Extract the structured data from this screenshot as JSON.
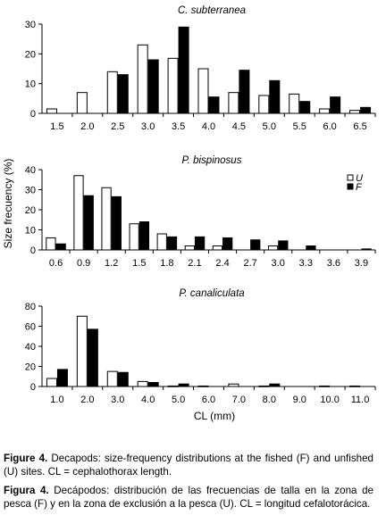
{
  "figure": {
    "y_axis_title": "Size frecuency (%)",
    "x_axis_title": "CL (mm)",
    "legend": {
      "unfished_label": "U",
      "fished_label": "F"
    }
  },
  "chart_data": [
    {
      "type": "bar",
      "title": "C. subterranea",
      "categories": [
        "1.5",
        "2.0",
        "2.5",
        "3.0",
        "3.5",
        "4.0",
        "4.5",
        "5.0",
        "5.5",
        "6.0",
        "6.5"
      ],
      "series": [
        {
          "name": "U",
          "color": "#ffffff",
          "values": [
            1.5,
            7,
            14,
            23,
            18.5,
            15,
            7,
            6,
            6.5,
            1.5,
            1
          ]
        },
        {
          "name": "F",
          "color": "#000000",
          "values": [
            0,
            0,
            13,
            18,
            29,
            5.5,
            14.5,
            11,
            4,
            5.5,
            2
          ]
        }
      ],
      "ylim": [
        0,
        30
      ],
      "yticks": [
        0,
        10,
        20,
        30
      ]
    },
    {
      "type": "bar",
      "title": "P. bispinosus",
      "categories": [
        "0.6",
        "0.9",
        "1.2",
        "1.5",
        "1.8",
        "2.1",
        "2.4",
        "2.7",
        "3.0",
        "3.3",
        "3.6",
        "3.9"
      ],
      "series": [
        {
          "name": "U",
          "color": "#ffffff",
          "values": [
            6,
            37,
            31,
            13,
            8,
            2,
            2,
            0,
            2,
            0,
            0,
            0
          ]
        },
        {
          "name": "F",
          "color": "#000000",
          "values": [
            3,
            27,
            26.5,
            14,
            6.5,
            6.5,
            6,
            5,
            4.5,
            2,
            0,
            0.5
          ]
        }
      ],
      "ylim": [
        0,
        40
      ],
      "yticks": [
        0,
        10,
        20,
        30,
        40
      ]
    },
    {
      "type": "bar",
      "title": "P. canaliculata",
      "categories": [
        "1.0",
        "2.0",
        "3.0",
        "4.0",
        "5.0",
        "6.0",
        "7.0",
        "8.0",
        "9.0",
        "10.0",
        "11.0"
      ],
      "series": [
        {
          "name": "U",
          "color": "#ffffff",
          "values": [
            8,
            70,
            15,
            5,
            0.5,
            0.5,
            2.5,
            0.5,
            0,
            0.5,
            0.5
          ]
        },
        {
          "name": "F",
          "color": "#000000",
          "values": [
            17,
            57,
            14,
            4,
            2.5,
            0,
            0,
            2.5,
            0,
            0,
            0
          ]
        }
      ],
      "ylim": [
        0,
        80
      ],
      "yticks": [
        0,
        20,
        40,
        60,
        80
      ]
    }
  ],
  "caption": {
    "en": {
      "label": "Figure 4.",
      "text": " Decapods: size-frequency distributions at the fished (F) and unfished (U) sites. CL = cephalothorax length."
    },
    "es": {
      "label": "Figura 4.",
      "text": " Decápodos: distribución de las frecuencias de talla en la zona de pesca (F) y en la zona de exclusión a la pesca (U). CL = longitud cefalotorácica."
    }
  }
}
